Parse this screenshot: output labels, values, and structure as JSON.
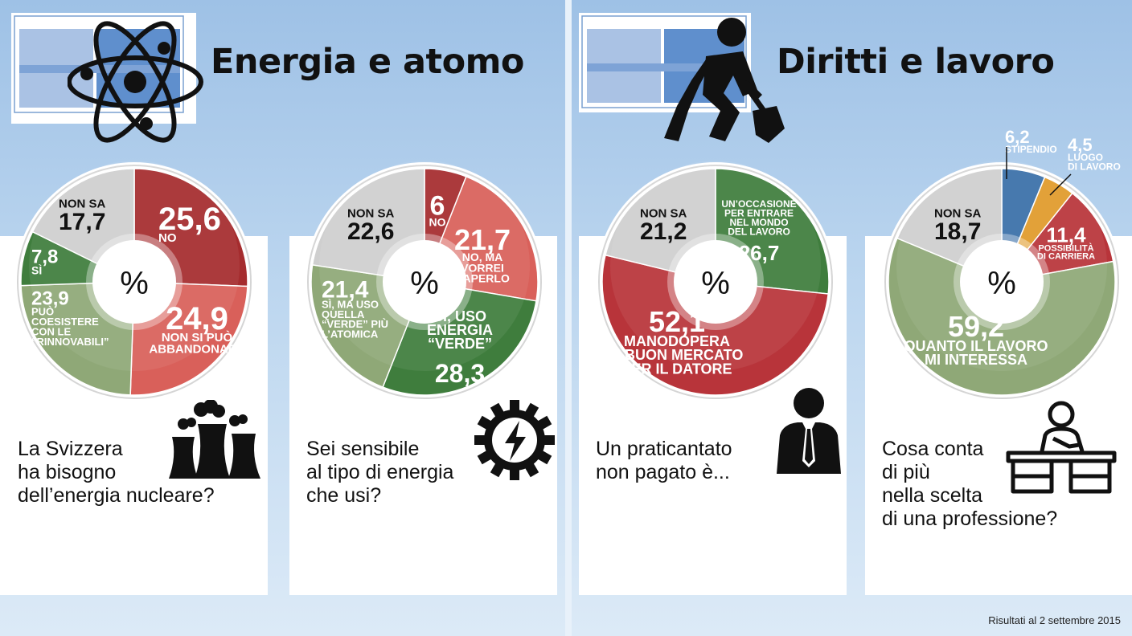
{
  "sections": [
    {
      "title": "Energia e atomo"
    },
    {
      "title": "Diritti e lavoro"
    }
  ],
  "percent_symbol": "%",
  "footer": "Risultati al 2 settembre 2015",
  "colors": {
    "red_dark": "#a52c2e",
    "red_light": "#d9605a",
    "grey": "#cfcfcf",
    "green_dark": "#3f7d3d",
    "green_light": "#8fa877",
    "blue": "#3a6fa8",
    "orange": "#e09a2a"
  },
  "chart_data": [
    {
      "type": "pie",
      "question": [
        "La Svizzera",
        "ha bisogno",
        "dell’energia nucleare?"
      ],
      "slices": [
        {
          "label": [
            "NO"
          ],
          "value": 25.6,
          "display": "25,6",
          "color": "#a52c2e"
        },
        {
          "label": [
            "NON SI PUÒ",
            "ABBANDONARE"
          ],
          "value": 24.9,
          "display": "24,9",
          "color": "#d9605a"
        },
        {
          "label": [
            "PUÒ",
            "COESISTERE",
            "CON LE",
            "“RINNOVABILI”"
          ],
          "value": 23.9,
          "display": "23,9",
          "color": "#8fa877"
        },
        {
          "label": [
            "SÌ"
          ],
          "value": 7.8,
          "display": "7,8",
          "color": "#3f7d3d"
        },
        {
          "label": [
            "NON SA"
          ],
          "value": 17.7,
          "display": "17,7",
          "color": "#cfcfcf"
        }
      ]
    },
    {
      "type": "pie",
      "question": [
        "Sei sensibile",
        "al tipo di energia",
        "che usi?"
      ],
      "slices": [
        {
          "label": [
            "NO"
          ],
          "value": 6,
          "display": "6",
          "color": "#a52c2e"
        },
        {
          "label": [
            "NO, MA",
            "VORREI",
            "SAPERLO"
          ],
          "value": 21.7,
          "display": "21,7",
          "color": "#d9605a"
        },
        {
          "label": [
            "SÌ, USO",
            "ENERGIA",
            "“VERDE”"
          ],
          "value": 28.3,
          "display": "28,3",
          "color": "#3f7d3d"
        },
        {
          "label": [
            "SÌ, MA USO",
            "QUELLA",
            "“VERDE” PIÙ",
            "L’ATOMICA"
          ],
          "value": 21.4,
          "display": "21,4",
          "color": "#8fa877"
        },
        {
          "label": [
            "NON SA"
          ],
          "value": 22.6,
          "display": "22,6",
          "color": "#cfcfcf"
        }
      ]
    },
    {
      "type": "pie",
      "question": [
        "Un praticantato",
        "non pagato è..."
      ],
      "slices": [
        {
          "label": [
            "UN’OCCASIONE",
            "PER ENTRARE",
            "NEL MONDO",
            "DEL LAVORO"
          ],
          "value": 26.7,
          "display": "26,7",
          "color": "#3f7d3d"
        },
        {
          "label": [
            "MANODOPERA",
            "A BUON MERCATO",
            "PER IL DATORE"
          ],
          "value": 52.1,
          "display": "52,1",
          "color": "#b8343a"
        },
        {
          "label": [
            "NON SA"
          ],
          "value": 21.2,
          "display": "21,2",
          "color": "#cfcfcf"
        }
      ]
    },
    {
      "type": "pie",
      "question": [
        "Cosa conta",
        "di più",
        "nella scelta",
        "di una professione?"
      ],
      "slices": [
        {
          "label": [
            "STIPENDIO"
          ],
          "value": 6.2,
          "display": "6,2",
          "color": "#3a6fa8"
        },
        {
          "label": [
            "LUOGO",
            "DI LAVORO"
          ],
          "value": 4.5,
          "display": "4,5",
          "color": "#e09a2a"
        },
        {
          "label": [
            "POSSIBILITÀ",
            "DI CARRIERA"
          ],
          "value": 11.4,
          "display": "11,4",
          "color": "#b8343a"
        },
        {
          "label": [
            "QUANTO IL LAVORO",
            "MI INTERESSA"
          ],
          "value": 59.2,
          "display": "59,2",
          "color": "#8fa877"
        },
        {
          "label": [
            "NON SA"
          ],
          "value": 18.7,
          "display": "18,7",
          "color": "#cfcfcf"
        }
      ]
    }
  ]
}
